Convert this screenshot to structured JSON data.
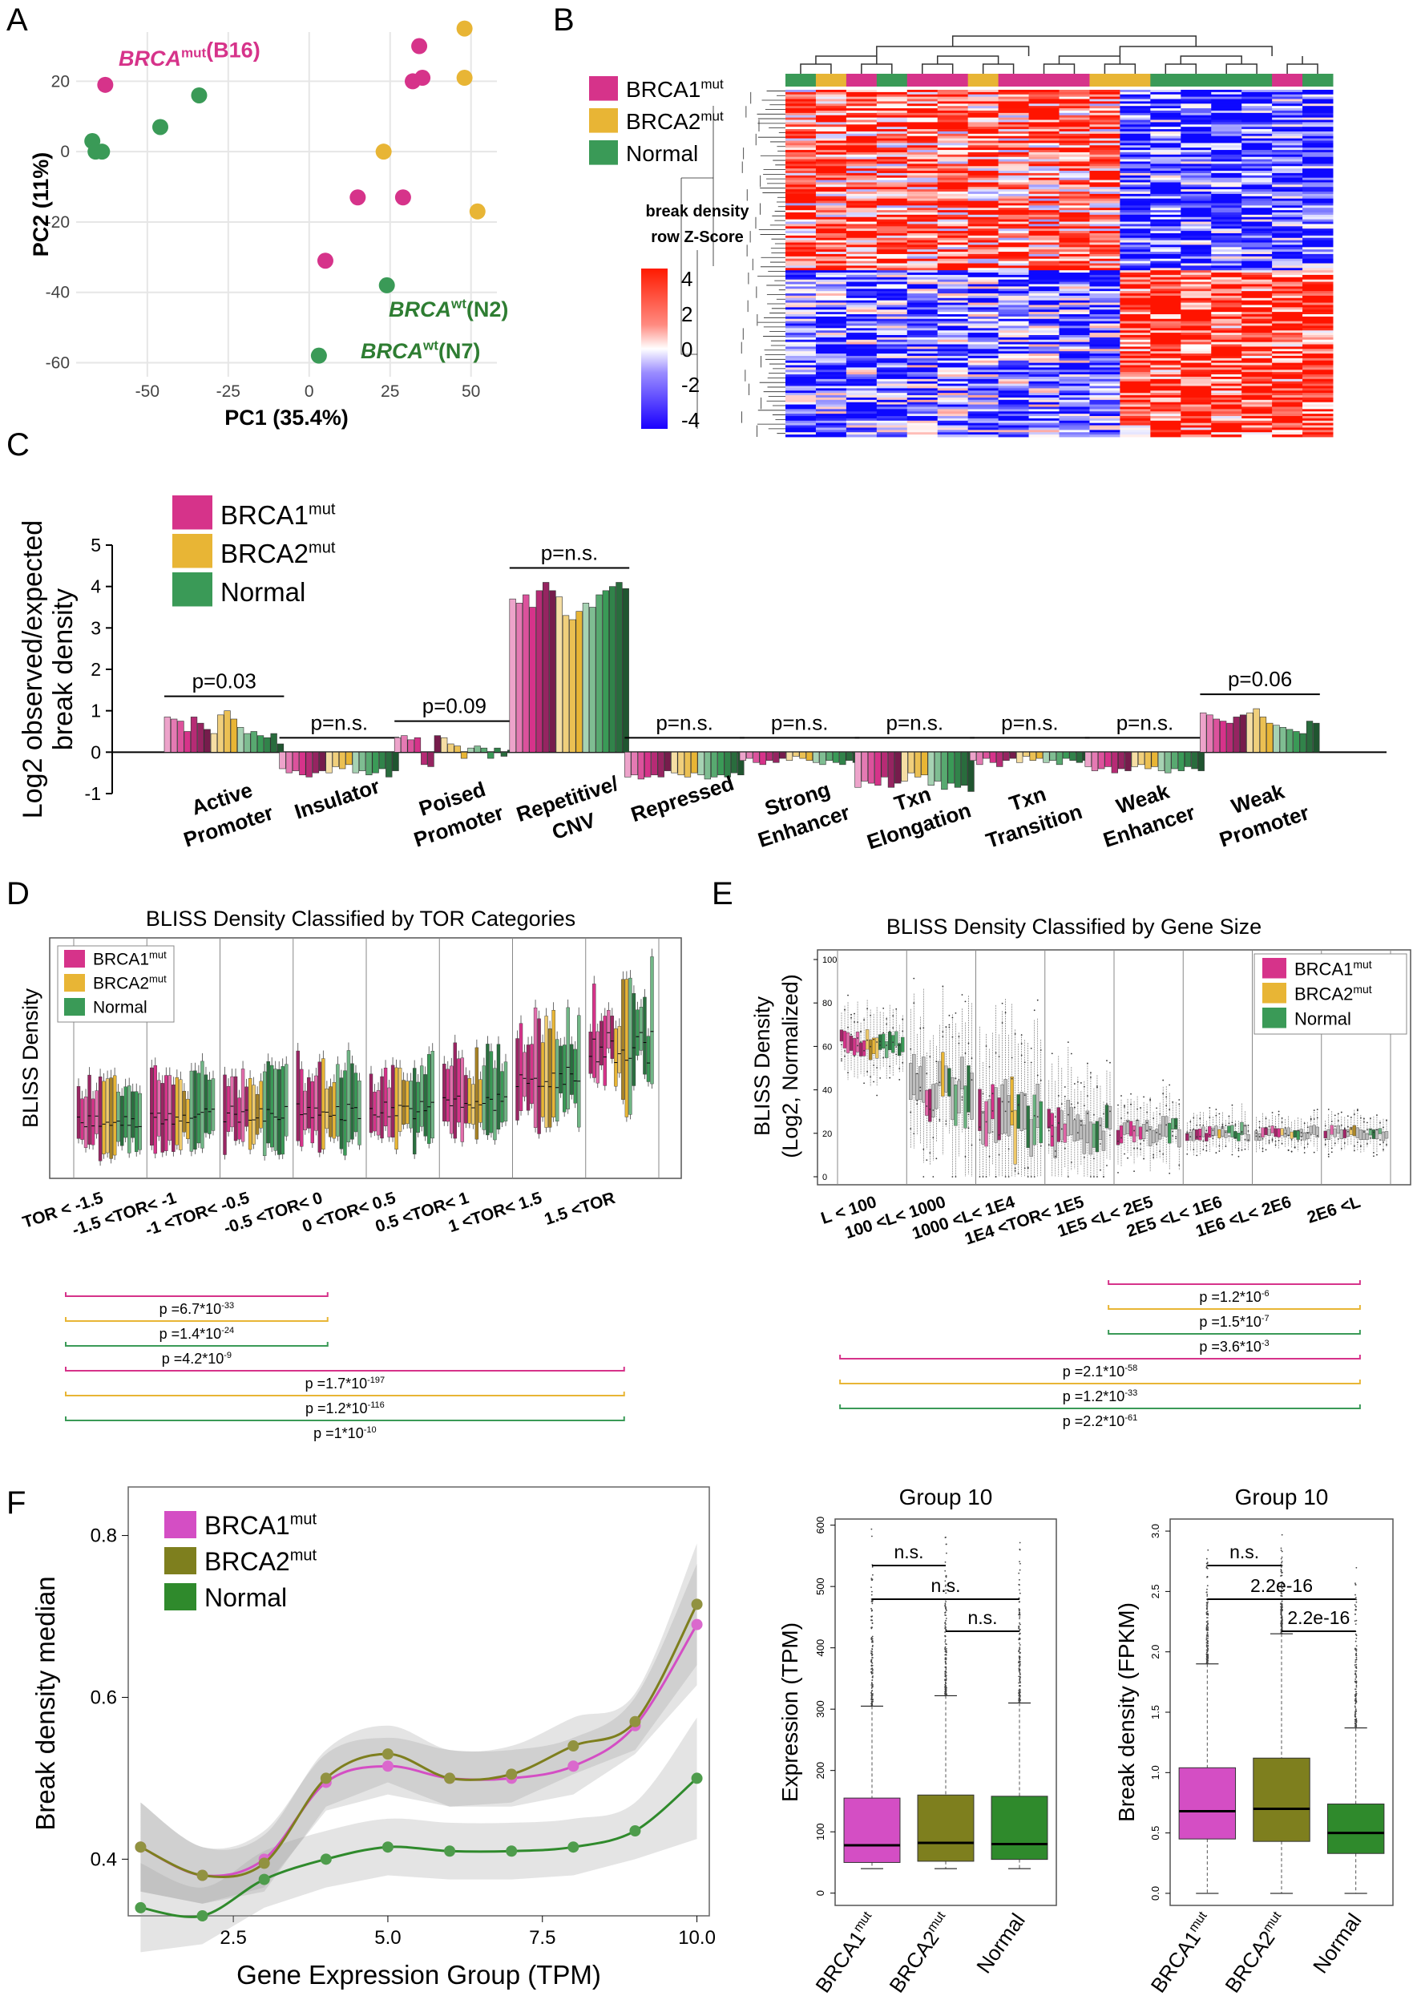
{
  "colors": {
    "brca1": "#d6338a",
    "brca2": "#e8b535",
    "normal": "#3a9a57",
    "brca1_box": "#d44ec4",
    "brca2_box": "#7e7f1e",
    "normal_box": "#2f8a2c"
  },
  "legend": {
    "brca1": "BRCA1",
    "brca2": "BRCA2",
    "normal": "Normal",
    "sup": "mut"
  },
  "panel_letters": {
    "a": "A",
    "b": "B",
    "c": "C",
    "d": "D",
    "e": "E",
    "f": "F"
  },
  "chart_data": [
    {
      "id": "A",
      "type": "scatter",
      "xlabel": "PC1 (35.4%)",
      "ylabel": "PC2 (11%)",
      "xlim": [
        -72,
        58
      ],
      "ylim": [
        -64,
        34
      ],
      "xticks": [
        -50,
        -25,
        0,
        25,
        50
      ],
      "yticks": [
        20,
        0,
        -20,
        -40,
        -60
      ],
      "series": [
        {
          "name": "BRCA1mut",
          "points": [
            [
              -63,
              19
            ],
            [
              34,
              30
            ],
            [
              32,
              20
            ],
            [
              35,
              21
            ],
            [
              15,
              -13
            ],
            [
              29,
              -13
            ],
            [
              5,
              -31
            ]
          ]
        },
        {
          "name": "BRCA2mut",
          "points": [
            [
              48,
              35
            ],
            [
              48,
              21
            ],
            [
              23,
              0
            ],
            [
              52,
              -17
            ]
          ]
        },
        {
          "name": "Normal",
          "points": [
            [
              -34,
              16
            ],
            [
              -46,
              7
            ],
            [
              -67,
              3
            ],
            [
              -66,
              0
            ],
            [
              -64,
              0
            ],
            [
              24,
              -38
            ],
            [
              3,
              -58
            ]
          ]
        }
      ],
      "annotations": [
        {
          "italic": "BRCA",
          "sup": "mut",
          "rest": "(B16)",
          "group": "brca1"
        },
        {
          "italic": "BRCA",
          "sup": "wt",
          "rest": "(N2)",
          "group": "normal"
        },
        {
          "italic": "BRCA",
          "sup": "wt",
          "rest": "(N7)",
          "group": "normal"
        }
      ]
    },
    {
      "id": "B",
      "type": "heatmap",
      "color_key_title": [
        "break density",
        "row Z-Score"
      ],
      "color_key_ticks": [
        "4",
        "2",
        "0",
        "-2",
        "-4"
      ],
      "column_groups": [
        "Normal",
        "BRCA2mut",
        "BRCA1mut",
        "Normal",
        "BRCA1mut",
        "BRCA2mut",
        "BRCA1mut",
        "BRCA2mut",
        "Normal",
        "BRCA1mut",
        "Normal"
      ]
    },
    {
      "id": "C",
      "type": "bar",
      "ylabel": [
        "Log2 observed/expected",
        "break density"
      ],
      "ylim": [
        -1,
        5
      ],
      "yticks": [
        5,
        4,
        3,
        2,
        1,
        0,
        -1
      ],
      "categories": [
        [
          "Active",
          "Promoter"
        ],
        [
          "Insulator"
        ],
        [
          "Poised",
          "Promoter"
        ],
        [
          "Repetitive/",
          "CNV"
        ],
        [
          "Repressed"
        ],
        [
          "Strong",
          "Enhancer"
        ],
        [
          "Txn",
          "Elongation"
        ],
        [
          "Txn",
          "Transition"
        ],
        [
          "Weak",
          "Enhancer"
        ],
        [
          "Weak",
          "Promoter"
        ]
      ],
      "pvalues": [
        "p=0.03",
        "p=n.s.",
        "p=0.09",
        "p=n.s.",
        "p=n.s.",
        "p=n.s.",
        "p=n.s.",
        "p=n.s.",
        "p=n.s.",
        "p=0.06"
      ],
      "values": [
        [
          0.85,
          0.8,
          0.75,
          0.5,
          0.85,
          0.7,
          0.55,
          0.45,
          0.9,
          1.0,
          0.8,
          0.6,
          0.45,
          0.5,
          0.4,
          0.35,
          0.45,
          0.2
        ],
        [
          -0.4,
          -0.5,
          -0.45,
          -0.55,
          -0.6,
          -0.5,
          -0.45,
          -0.5,
          -0.35,
          -0.4,
          -0.3,
          -0.5,
          -0.45,
          -0.55,
          -0.5,
          -0.4,
          -0.6,
          -0.45
        ],
        [
          0.35,
          0.4,
          0.3,
          0.35,
          -0.3,
          -0.35,
          0.4,
          0.35,
          0.2,
          0.15,
          -0.15,
          0.1,
          0.15,
          0.1,
          -0.15,
          0.1,
          -0.1,
          0.05
        ],
        [
          3.7,
          3.6,
          3.8,
          3.5,
          3.9,
          4.1,
          3.9,
          3.75,
          3.3,
          3.2,
          3.4,
          3.6,
          3.5,
          3.8,
          3.9,
          4.0,
          4.1,
          3.95
        ],
        [
          -0.6,
          -0.55,
          -0.65,
          -0.6,
          -0.55,
          -0.6,
          -0.45,
          -0.5,
          -0.55,
          -0.6,
          -0.5,
          -0.55,
          -0.65,
          -0.6,
          -0.55,
          -0.6,
          -0.5,
          -0.55
        ],
        [
          -0.2,
          -0.15,
          -0.25,
          -0.3,
          -0.2,
          -0.25,
          -0.15,
          -0.2,
          -0.1,
          -0.15,
          -0.2,
          -0.25,
          -0.3,
          -0.2,
          -0.25,
          -0.3,
          -0.2,
          -0.25
        ],
        [
          -0.85,
          -0.7,
          -0.75,
          -0.8,
          -0.6,
          -0.85,
          -0.75,
          -0.7,
          -0.5,
          -0.6,
          -0.55,
          -0.8,
          -0.7,
          -0.9,
          -0.75,
          -0.85,
          -0.8,
          -0.95
        ],
        [
          -0.2,
          -0.3,
          -0.15,
          -0.25,
          -0.35,
          -0.2,
          -0.15,
          -0.25,
          -0.1,
          -0.2,
          -0.15,
          -0.25,
          -0.2,
          -0.3,
          -0.15,
          -0.2,
          -0.25,
          -0.2
        ],
        [
          -0.35,
          -0.45,
          -0.4,
          -0.35,
          -0.5,
          -0.4,
          -0.45,
          -0.35,
          -0.3,
          -0.4,
          -0.35,
          -0.45,
          -0.5,
          -0.4,
          -0.45,
          -0.35,
          -0.4,
          -0.45
        ],
        [
          0.95,
          0.9,
          0.8,
          0.75,
          0.7,
          0.85,
          0.9,
          0.95,
          1.05,
          0.85,
          0.7,
          0.65,
          0.6,
          0.55,
          0.5,
          0.45,
          0.75,
          0.7
        ]
      ],
      "bar_groups": [
        "brca1",
        "brca1",
        "brca1",
        "brca1",
        "brca1",
        "brca1",
        "brca1",
        "brca2",
        "brca2",
        "brca2",
        "brca2",
        "normal",
        "normal",
        "normal",
        "normal",
        "normal",
        "normal",
        "normal"
      ]
    },
    {
      "id": "D",
      "type": "boxplot",
      "title": "BLISS Density Classified by TOR Categories",
      "ylabel": "BLISS Density",
      "categories": [
        "TOR < -1.5",
        "-1.5 <TOR< -1",
        "-1 <TOR< -0.5",
        "-0.5 <TOR< 0",
        "0 <TOR< 0.5",
        "0.5 <TOR< 1",
        "1 <TOR< 1.5",
        "1.5 <TOR"
      ],
      "medians_rel": [
        0.22,
        0.24,
        0.25,
        0.26,
        0.27,
        0.3,
        0.4,
        0.55
      ],
      "pvalue_lines": [
        {
          "base": "p =6.7*10",
          "exp": "-33",
          "group": "brca1",
          "span": [
            0,
            3
          ]
        },
        {
          "base": "p =1.4*10",
          "exp": "-24",
          "group": "brca2",
          "span": [
            0,
            3
          ]
        },
        {
          "base": "p =4.2*10",
          "exp": "-9",
          "group": "normal",
          "span": [
            0,
            3
          ]
        },
        {
          "base": "p =1.7*10",
          "exp": "-197",
          "group": "brca1",
          "span": [
            0,
            7
          ]
        },
        {
          "base": "p =1.2*10",
          "exp": "-116",
          "group": "brca2",
          "span": [
            0,
            7
          ]
        },
        {
          "base": "p =1*10",
          "exp": "-10",
          "group": "normal",
          "span": [
            0,
            7
          ]
        }
      ]
    },
    {
      "id": "E",
      "type": "boxplot",
      "title": "BLISS Density Classified by Gene Size",
      "ylabel": [
        "BLISS Density",
        "(Log2, Normalized)"
      ],
      "ylim": [
        0,
        100
      ],
      "yticks": [
        0,
        20,
        40,
        60,
        80,
        100
      ],
      "categories": [
        "L < 100",
        "100 <L< 1000",
        "1000 <L< 1E4",
        "1E4 <TOR< 1E5",
        "1E5 <L< 2E5",
        "2E5 <L< 1E6",
        "1E6 <L< 2E6",
        "2E6 <L"
      ],
      "medians": [
        62,
        40,
        27,
        22,
        21,
        20,
        20,
        20
      ],
      "pvalue_lines": [
        {
          "base": "p =1.2*10",
          "exp": "-6",
          "group": "brca1",
          "span": [
            4,
            7
          ]
        },
        {
          "base": "p =1.5*10",
          "exp": "-7",
          "group": "brca2",
          "span": [
            4,
            7
          ]
        },
        {
          "base": "p =3.6*10",
          "exp": "-3",
          "group": "normal",
          "span": [
            4,
            7
          ]
        },
        {
          "base": "p =2.1*10",
          "exp": "-58",
          "group": "brca1",
          "span": [
            0,
            7
          ]
        },
        {
          "base": "p =1.2*10",
          "exp": "-33",
          "group": "brca2",
          "span": [
            0,
            7
          ]
        },
        {
          "base": "p =2.2*10",
          "exp": "-61",
          "group": "normal",
          "span": [
            0,
            7
          ]
        }
      ]
    },
    {
      "id": "F-line",
      "type": "line",
      "xlabel": "Gene Expression Group (TPM)",
      "ylabel": "Break density median",
      "xlim": [
        0.8,
        10.2
      ],
      "ylim": [
        0.33,
        0.86
      ],
      "xticks": [
        "2.5",
        "5.0",
        "7.5",
        "10.0"
      ],
      "xtick_values": [
        2.5,
        5,
        7.5,
        10
      ],
      "yticks": [
        "0.8",
        "0.6",
        "0.4"
      ],
      "ytick_values": [
        0.8,
        0.6,
        0.4
      ],
      "x": [
        1,
        2,
        3,
        4,
        5,
        6,
        7,
        8,
        9,
        10
      ],
      "series": [
        {
          "name": "BRCA1mut",
          "values": [
            0.415,
            0.38,
            0.4,
            0.495,
            0.515,
            0.5,
            0.5,
            0.515,
            0.565,
            0.69
          ]
        },
        {
          "name": "BRCA2mut",
          "values": [
            0.415,
            0.38,
            0.395,
            0.5,
            0.53,
            0.5,
            0.505,
            0.54,
            0.57,
            0.715
          ]
        },
        {
          "name": "Normal",
          "values": [
            0.34,
            0.33,
            0.375,
            0.4,
            0.415,
            0.41,
            0.41,
            0.415,
            0.435,
            0.5
          ]
        }
      ]
    },
    {
      "id": "F-expr",
      "type": "boxplot",
      "title": "Group 10",
      "ylabel": "Expression (TPM)",
      "ylim": [
        -20,
        610
      ],
      "yticks": [
        "0",
        "100",
        "200",
        "300",
        "400",
        "500",
        "600"
      ],
      "ytick_values": [
        0,
        100,
        200,
        300,
        400,
        500,
        600
      ],
      "categories": [
        "BRCA1",
        "BRCA2",
        "Normal"
      ],
      "boxes": [
        {
          "q1": 50,
          "median": 78,
          "q3": 155,
          "whisker_lo": 40,
          "whisker_hi": 305
        },
        {
          "q1": 52,
          "median": 82,
          "q3": 160,
          "whisker_lo": 40,
          "whisker_hi": 322
        },
        {
          "q1": 55,
          "median": 80,
          "q3": 158,
          "whisker_lo": 40,
          "whisker_hi": 310
        }
      ],
      "comparisons": [
        {
          "label": "n.s.",
          "from": 0,
          "to": 1
        },
        {
          "label": "n.s.",
          "from": 0,
          "to": 2
        },
        {
          "label": "n.s.",
          "from": 1,
          "to": 2
        }
      ]
    },
    {
      "id": "F-break",
      "type": "boxplot",
      "title": "Group 10",
      "ylabel": "Break density (FPKM)",
      "ylim": [
        -0.1,
        3.1
      ],
      "yticks": [
        "0.0",
        "0.5",
        "1.0",
        "1.5",
        "2.0",
        "2.5",
        "3.0"
      ],
      "ytick_values": [
        0,
        0.5,
        1,
        1.5,
        2,
        2.5,
        3
      ],
      "categories": [
        "BRCA1",
        "BRCA2",
        "Normal"
      ],
      "boxes": [
        {
          "q1": 0.45,
          "median": 0.68,
          "q3": 1.04,
          "whisker_lo": 0,
          "whisker_hi": 1.9
        },
        {
          "q1": 0.43,
          "median": 0.7,
          "q3": 1.12,
          "whisker_lo": 0,
          "whisker_hi": 2.15
        },
        {
          "q1": 0.33,
          "median": 0.5,
          "q3": 0.74,
          "whisker_lo": 0,
          "whisker_hi": 1.37
        }
      ],
      "comparisons": [
        {
          "label": "n.s.",
          "from": 0,
          "to": 1
        },
        {
          "label": "2.2e-16",
          "from": 0,
          "to": 2
        },
        {
          "label": "2.2e-16",
          "from": 1,
          "to": 2
        }
      ]
    }
  ]
}
